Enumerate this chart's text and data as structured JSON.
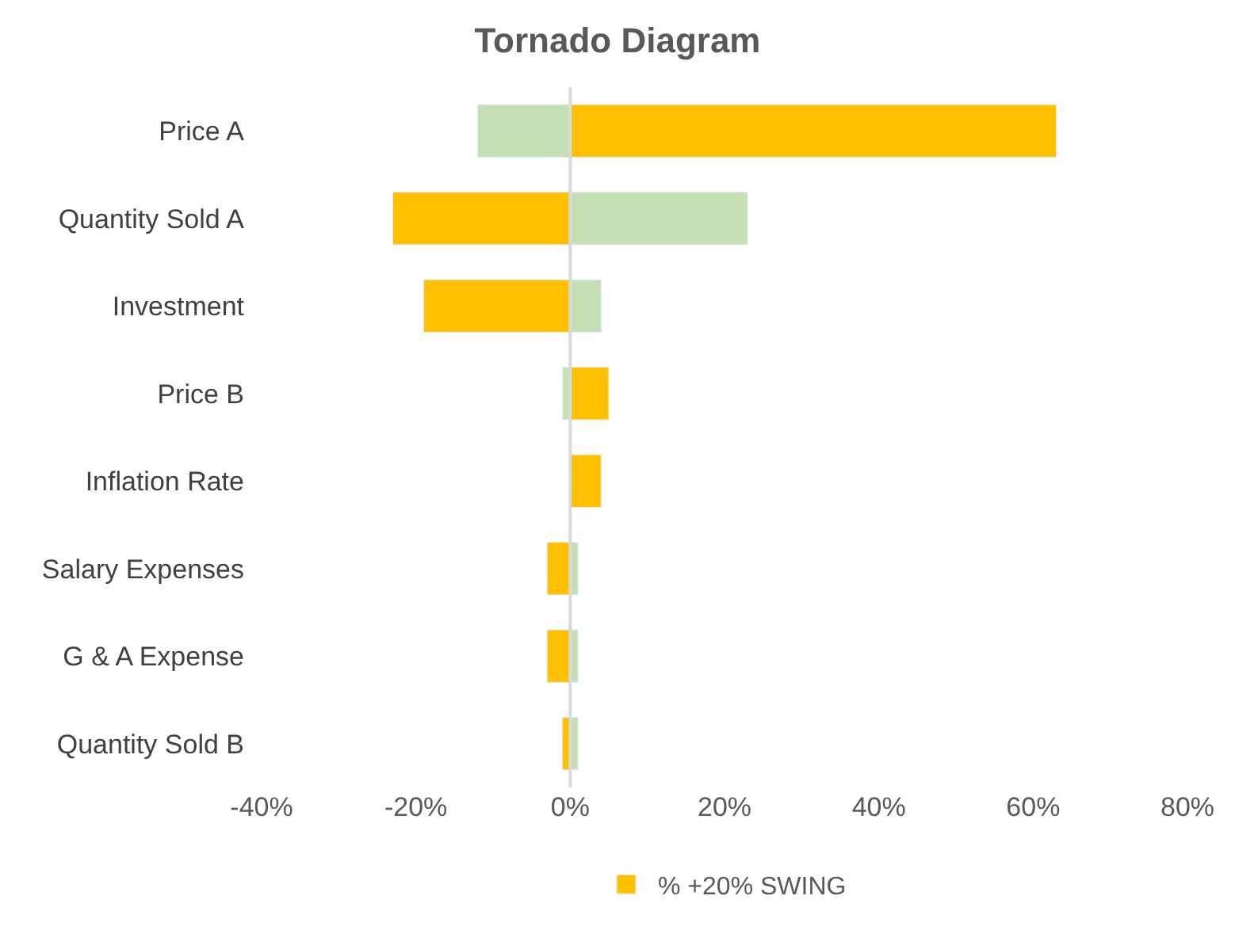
{
  "chart_data": {
    "type": "bar",
    "title": "Tornado Diagram",
    "orientation": "horizontal",
    "categories": [
      "Price A",
      "Quantity Sold A",
      "Investment",
      "Price B",
      "Inflation Rate",
      "Salary Expenses",
      "G & A Expense",
      "Quantity Sold B"
    ],
    "series": [
      {
        "color": "#c5e0b4",
        "values": [
          -12,
          23,
          4,
          -1,
          null,
          1,
          1,
          1
        ]
      },
      {
        "name": "% +20% SWING",
        "color": "#ffc000",
        "values": [
          63,
          -23,
          -19,
          5,
          4,
          -3,
          -3,
          -1
        ]
      }
    ],
    "xlim": [
      -40,
      80
    ],
    "xticks": [
      {
        "value": -40,
        "label": "-40%"
      },
      {
        "value": -20,
        "label": "-20%"
      },
      {
        "value": 0,
        "label": "0%"
      },
      {
        "value": 20,
        "label": "20%"
      },
      {
        "value": 40,
        "label": "40%"
      },
      {
        "value": 60,
        "label": "60%"
      },
      {
        "value": 80,
        "label": "80%"
      }
    ],
    "ref_lines": [
      {
        "axis": "x",
        "value": 0,
        "color": "#d9d9d9"
      }
    ],
    "stacked": true,
    "legend": "bottom"
  }
}
